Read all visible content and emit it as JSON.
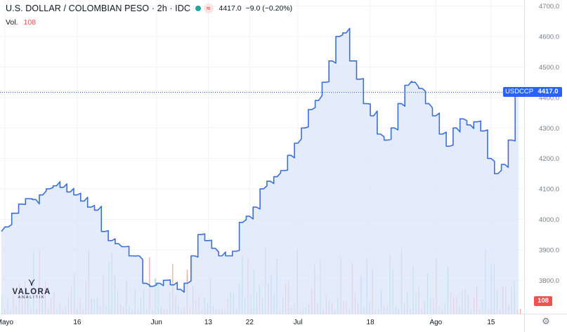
{
  "header": {
    "symbol": "U.S. DOLLAR / COLOMBIAN PESO · 2h · IDC",
    "market_dot_color": "#26a69a",
    "pill_symbol": "≈",
    "last_price": "4417.0",
    "change": "−9.0 (−0.20%)",
    "volume_label": "Vol.",
    "volume_value": "108"
  },
  "badges": {
    "ticker": "USDCCP",
    "price": "4417.0",
    "volume": "108"
  },
  "logo": {
    "name": "VALORA",
    "tagline": "ANALITIK"
  },
  "settings_icon": "gear-icon",
  "colors": {
    "line": "#3a6fd8",
    "up": "#26a69a",
    "down": "#ef5350",
    "fill": "#dbe6fb"
  },
  "chart_data": {
    "type": "area",
    "title": "U.S. DOLLAR / COLOMBIAN PESO · 2h · IDC",
    "ylim": [
      3690,
      4720
    ],
    "yticks": [
      "4700.0",
      "4600.0",
      "4500.0",
      "4400.0",
      "4300.0",
      "4200.0",
      "4100.0",
      "4000.0",
      "3900.0",
      "3800.0"
    ],
    "ytick_values": [
      4700,
      4600,
      4500,
      4400,
      4300,
      4200,
      4100,
      4000,
      3900,
      3800
    ],
    "xticks": [
      "Mayo",
      "16",
      "Jun",
      "13",
      "22",
      "Jul",
      "18",
      "Ago",
      "15"
    ],
    "xtick_positions": [
      0.5,
      11,
      22.5,
      30,
      36,
      43,
      53.5,
      63,
      71
    ],
    "x_range": [
      -0.2,
      75.8
    ],
    "series": [
      {
        "name": "USDCCP",
        "x": [
          0,
          1,
          2,
          3,
          4,
          5,
          6,
          7,
          8,
          9,
          10,
          11,
          12,
          13,
          14,
          15,
          16,
          17,
          18,
          19,
          20,
          21,
          22,
          23,
          24,
          25,
          26,
          27,
          28,
          29,
          30,
          31,
          32,
          33,
          34,
          35,
          36,
          37,
          38,
          39,
          40,
          41,
          42,
          43,
          44,
          45,
          46,
          47,
          48,
          49,
          50,
          51,
          52,
          53,
          54,
          55,
          56,
          57,
          58,
          59,
          60,
          61,
          62,
          63,
          64,
          65,
          66,
          67,
          68,
          69,
          70,
          71,
          72,
          73,
          74,
          75
        ],
        "values": [
          3960,
          3975,
          4020,
          4050,
          4068,
          4065,
          4080,
          4100,
          4110,
          4105,
          4090,
          4080,
          4060,
          4040,
          4030,
          3960,
          3930,
          3920,
          3910,
          3880,
          3880,
          3790,
          3780,
          3790,
          3800,
          3785,
          3770,
          3790,
          3880,
          3950,
          3930,
          3905,
          3880,
          3880,
          3895,
          3990,
          4010,
          4040,
          4100,
          4125,
          4140,
          4160,
          4210,
          4250,
          4300,
          4360,
          4390,
          4450,
          4520,
          4600,
          4612,
          4520,
          4460,
          4380,
          4340,
          4280,
          4260,
          4300,
          4380,
          4440,
          4450,
          4430,
          4380,
          4340,
          4280,
          4240,
          4300,
          4330,
          4310,
          4320,
          4290,
          4200,
          4150,
          4180,
          4260,
          4417
        ]
      }
    ],
    "volume_bars": 180,
    "volume_last": 108
  }
}
